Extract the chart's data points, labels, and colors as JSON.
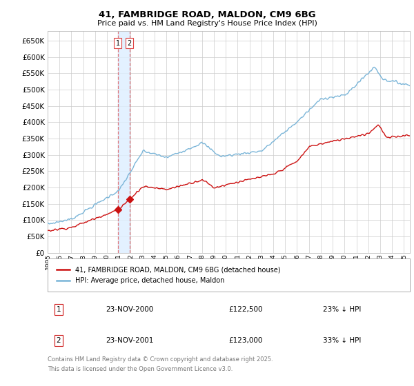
{
  "title": "41, FAMBRIDGE ROAD, MALDON, CM9 6BG",
  "subtitle": "Price paid vs. HM Land Registry's House Price Index (HPI)",
  "hpi_color": "#7ab5d8",
  "price_color": "#cc1111",
  "vline_color": "#dd4444",
  "vline_alpha": 0.7,
  "shade_color": "#ddeeff",
  "shade_alpha": 0.5,
  "background_color": "#ffffff",
  "grid_color": "#cccccc",
  "ylim": [
    0,
    680000
  ],
  "yticks": [
    0,
    50000,
    100000,
    150000,
    200000,
    250000,
    300000,
    350000,
    400000,
    450000,
    500000,
    550000,
    600000,
    650000
  ],
  "transactions": [
    {
      "date_num": 2000.9,
      "price": 122500,
      "label": "1"
    },
    {
      "date_num": 2001.9,
      "price": 123000,
      "label": "2"
    }
  ],
  "table_rows": [
    {
      "num": "1",
      "date": "23-NOV-2000",
      "price": "£122,500",
      "hpi_diff": "23% ↓ HPI"
    },
    {
      "num": "2",
      "date": "23-NOV-2001",
      "price": "£123,000",
      "hpi_diff": "33% ↓ HPI"
    }
  ],
  "legend_items": [
    {
      "label": "41, FAMBRIDGE ROAD, MALDON, CM9 6BG (detached house)",
      "color": "#cc1111"
    },
    {
      "label": "HPI: Average price, detached house, Maldon",
      "color": "#7ab5d8"
    }
  ],
  "footer": "Contains HM Land Registry data © Crown copyright and database right 2025.\nThis data is licensed under the Open Government Licence v3.0.",
  "xmin": 1995,
  "xmax": 2025.5
}
